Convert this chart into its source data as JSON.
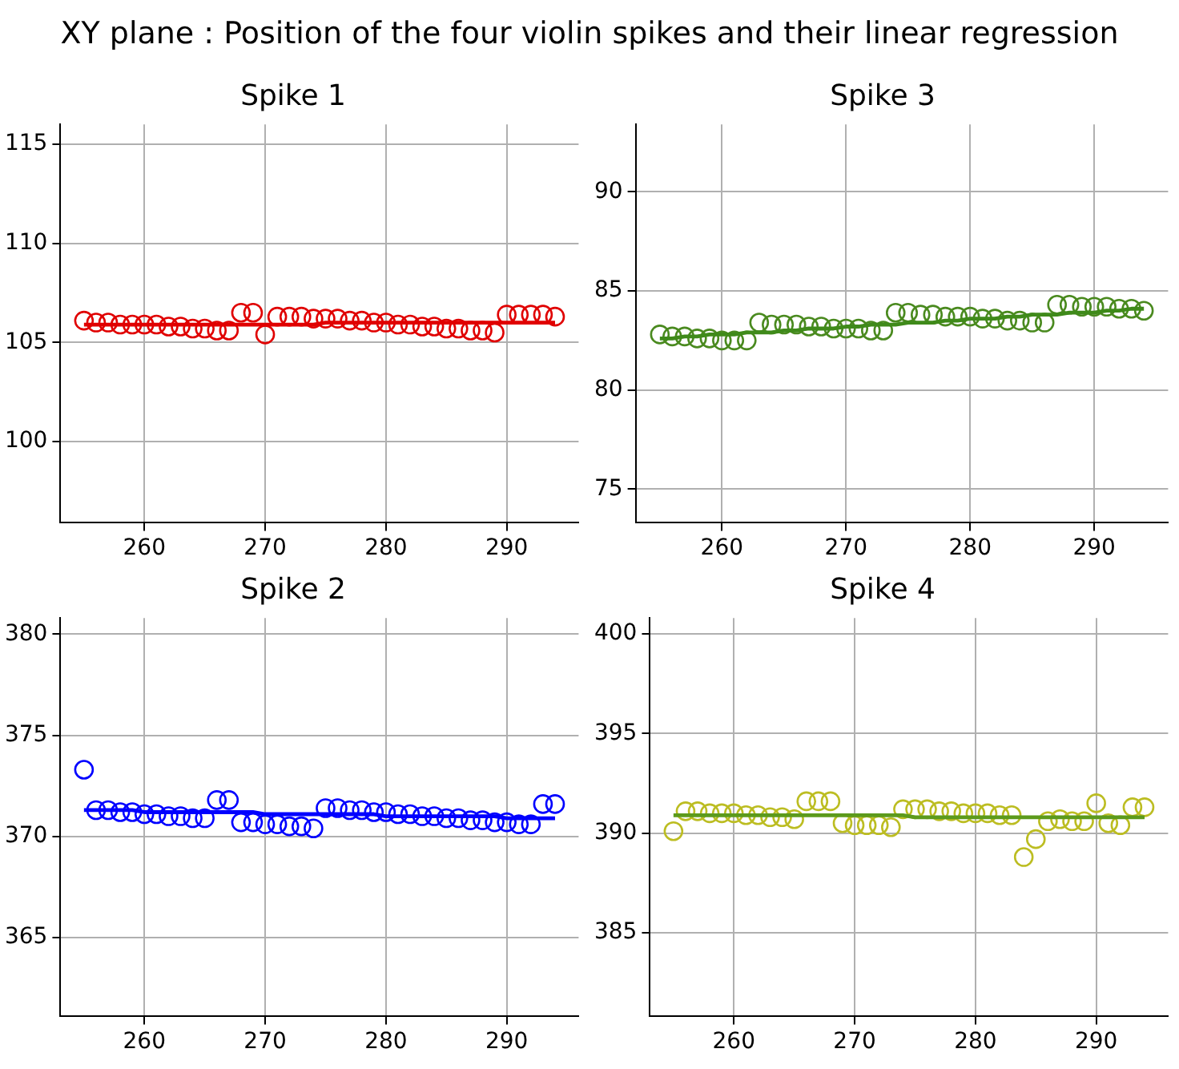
{
  "chart_data": [
    {
      "type": "other",
      "title": "XY plane : Position of the four violin spikes and their linear regression"
    },
    {
      "type": "scatter",
      "title": "Spike 1",
      "x": [
        255,
        256,
        257,
        258,
        259,
        260,
        261,
        262,
        263,
        264,
        265,
        266,
        267,
        268,
        269,
        270,
        271,
        272,
        273,
        274,
        275,
        276,
        277,
        278,
        279,
        280,
        281,
        282,
        283,
        284,
        285,
        286,
        287,
        288,
        289,
        290,
        291,
        292,
        293,
        294
      ],
      "xlim": [
        253.05,
        295.95
      ],
      "xticks": [
        260,
        270,
        280,
        290
      ],
      "ylim": [
        95.9,
        116
      ],
      "yticks": [
        100,
        105,
        110,
        115
      ],
      "grid": true,
      "legend": false,
      "series": [
        {
          "color": "#e00000",
          "marker": "circle",
          "values": [
            106.1,
            106.0,
            106.0,
            105.9,
            105.9,
            105.9,
            105.9,
            105.8,
            105.8,
            105.7,
            105.7,
            105.6,
            105.6,
            106.5,
            106.5,
            105.4,
            106.3,
            106.3,
            106.3,
            106.2,
            106.2,
            106.2,
            106.1,
            106.1,
            106.0,
            106.0,
            105.9,
            105.9,
            105.8,
            105.8,
            105.7,
            105.7,
            105.6,
            105.6,
            105.5,
            106.4,
            106.4,
            106.4,
            106.4,
            106.3
          ]
        },
        {
          "type": "line",
          "color": "#e00000",
          "marker": "none",
          "values": [
            105.9,
            105.9,
            105.9,
            105.9,
            105.9,
            105.9,
            105.9,
            105.9,
            105.9,
            105.9,
            105.9,
            105.9,
            105.9,
            105.9,
            105.9,
            105.9,
            105.9,
            105.9,
            105.9,
            105.9,
            106.0,
            106.0,
            106.0,
            106.0,
            106.0,
            106.0,
            106.0,
            106.0,
            106.0,
            106.0,
            106.0,
            106.0,
            106.0,
            106.0,
            106.0,
            106.0,
            106.0,
            106.0,
            106.0,
            106.0
          ]
        }
      ]
    },
    {
      "type": "scatter",
      "title": "Spike 3",
      "x": [
        255,
        256,
        257,
        258,
        259,
        260,
        261,
        262,
        263,
        264,
        265,
        266,
        267,
        268,
        269,
        270,
        271,
        272,
        273,
        274,
        275,
        276,
        277,
        278,
        279,
        280,
        281,
        282,
        283,
        284,
        285,
        286,
        287,
        288,
        289,
        290,
        291,
        292,
        293,
        294
      ],
      "xlim": [
        253.05,
        295.95
      ],
      "xticks": [
        260,
        270,
        280,
        290
      ],
      "ylim": [
        73.3,
        93.4
      ],
      "yticks": [
        75,
        80,
        85,
        90
      ],
      "grid": true,
      "legend": false,
      "series": [
        {
          "color": "#4a8a1f",
          "marker": "circle",
          "values": [
            82.8,
            82.7,
            82.7,
            82.6,
            82.6,
            82.5,
            82.5,
            82.5,
            83.4,
            83.3,
            83.3,
            83.3,
            83.2,
            83.2,
            83.1,
            83.1,
            83.1,
            83.0,
            83.0,
            83.9,
            83.9,
            83.8,
            83.8,
            83.7,
            83.7,
            83.7,
            83.6,
            83.6,
            83.5,
            83.5,
            83.4,
            83.4,
            84.3,
            84.3,
            84.2,
            84.2,
            84.2,
            84.1,
            84.1,
            84.0
          ]
        },
        {
          "type": "line",
          "color": "#3f8a1a",
          "marker": "none",
          "values": [
            82.6,
            82.6,
            82.7,
            82.7,
            82.8,
            82.8,
            82.8,
            82.9,
            82.9,
            82.9,
            83.0,
            83.0,
            83.1,
            83.1,
            83.1,
            83.2,
            83.2,
            83.3,
            83.3,
            83.3,
            83.4,
            83.4,
            83.4,
            83.5,
            83.5,
            83.6,
            83.6,
            83.6,
            83.7,
            83.7,
            83.8,
            83.8,
            83.8,
            83.9,
            83.9,
            83.9,
            84.0,
            84.0,
            84.1,
            84.1
          ]
        }
      ]
    },
    {
      "type": "scatter",
      "title": "Spike 2",
      "x": [
        255,
        256,
        257,
        258,
        259,
        260,
        261,
        262,
        263,
        264,
        265,
        266,
        267,
        268,
        269,
        270,
        271,
        272,
        273,
        274,
        275,
        276,
        277,
        278,
        279,
        280,
        281,
        282,
        283,
        284,
        285,
        286,
        287,
        288,
        289,
        290,
        291,
        292,
        293,
        294
      ],
      "xlim": [
        253.05,
        295.95
      ],
      "xticks": [
        260,
        270,
        280,
        290
      ],
      "ylim": [
        361.1,
        380.8
      ],
      "yticks": [
        365,
        370,
        375,
        380
      ],
      "grid": true,
      "legend": false,
      "series": [
        {
          "color": "#0000ff",
          "marker": "circle",
          "values": [
            373.3,
            371.3,
            371.3,
            371.2,
            371.2,
            371.1,
            371.1,
            371.0,
            371.0,
            370.9,
            370.9,
            371.8,
            371.8,
            370.7,
            370.7,
            370.6,
            370.6,
            370.5,
            370.5,
            370.4,
            371.4,
            371.4,
            371.3,
            371.3,
            371.2,
            371.2,
            371.1,
            371.1,
            371.0,
            371.0,
            370.9,
            370.9,
            370.8,
            370.8,
            370.7,
            370.7,
            370.6,
            370.6,
            371.6,
            371.6
          ]
        },
        {
          "type": "line",
          "color": "#0000ff",
          "marker": "none",
          "values": [
            371.3,
            371.3,
            371.3,
            371.3,
            371.3,
            371.2,
            371.2,
            371.2,
            371.2,
            371.2,
            371.2,
            371.2,
            371.2,
            371.2,
            371.2,
            371.1,
            371.1,
            371.1,
            371.1,
            371.1,
            371.1,
            371.1,
            371.1,
            371.1,
            371.1,
            371.0,
            371.0,
            371.0,
            371.0,
            371.0,
            371.0,
            371.0,
            371.0,
            371.0,
            371.0,
            370.9,
            370.9,
            370.9,
            370.9,
            370.9
          ]
        }
      ]
    },
    {
      "type": "scatter",
      "title": "Spike 4",
      "x": [
        255,
        256,
        257,
        258,
        259,
        260,
        261,
        262,
        263,
        264,
        265,
        266,
        267,
        268,
        269,
        270,
        271,
        272,
        273,
        274,
        275,
        276,
        277,
        278,
        279,
        280,
        281,
        282,
        283,
        284,
        285,
        286,
        287,
        288,
        289,
        290,
        291,
        292,
        293,
        294
      ],
      "xlim": [
        253.05,
        295.95
      ],
      "xticks": [
        260,
        270,
        280,
        290
      ],
      "ylim": [
        380.8,
        400.8
      ],
      "yticks": [
        385,
        390,
        395,
        400
      ],
      "grid": true,
      "legend": false,
      "series": [
        {
          "color": "#bcbd22",
          "marker": "circle",
          "values": [
            390.1,
            391.1,
            391.1,
            391.0,
            391.0,
            391.0,
            390.9,
            390.9,
            390.8,
            390.8,
            390.7,
            391.6,
            391.6,
            391.6,
            390.5,
            390.4,
            390.4,
            390.4,
            390.3,
            391.2,
            391.2,
            391.2,
            391.1,
            391.1,
            391.0,
            391.0,
            391.0,
            390.9,
            390.9,
            388.8,
            389.7,
            390.6,
            390.7,
            390.6,
            390.6,
            391.5,
            390.5,
            390.4,
            391.3,
            391.3
          ]
        },
        {
          "type": "line",
          "color": "#5c9a1c",
          "marker": "none",
          "values": [
            390.9,
            390.9,
            390.9,
            390.9,
            390.9,
            390.9,
            390.9,
            390.9,
            390.9,
            390.9,
            390.9,
            390.9,
            390.9,
            390.9,
            390.9,
            390.9,
            390.9,
            390.9,
            390.9,
            390.9,
            390.8,
            390.8,
            390.8,
            390.8,
            390.8,
            390.8,
            390.8,
            390.8,
            390.8,
            390.8,
            390.8,
            390.8,
            390.8,
            390.8,
            390.8,
            390.8,
            390.8,
            390.8,
            390.8,
            390.8
          ]
        }
      ]
    }
  ]
}
